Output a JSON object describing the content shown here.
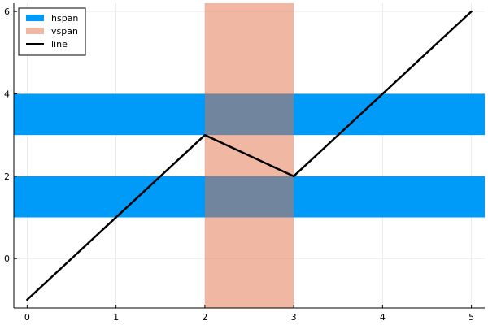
{
  "chart_data": {
    "type": "line",
    "xlim": [
      -0.15,
      5.15
    ],
    "ylim": [
      -1.2,
      6.2
    ],
    "xticks": [
      0,
      1,
      2,
      3,
      4,
      5
    ],
    "yticks": [
      0,
      2,
      4,
      6
    ],
    "grid": true,
    "legend_position": "top-left",
    "hspan": {
      "name": "hspan",
      "color": "#009af9",
      "ranges": [
        [
          1,
          2
        ],
        [
          3,
          4
        ]
      ]
    },
    "vspan": {
      "name": "vspan",
      "color": "#e26f46",
      "opacity": 0.5,
      "ranges": [
        [
          2,
          3
        ]
      ]
    },
    "line": {
      "name": "line",
      "color": "#000000",
      "x": [
        0,
        2,
        3,
        5
      ],
      "y": [
        -1,
        3,
        2,
        6
      ]
    }
  }
}
